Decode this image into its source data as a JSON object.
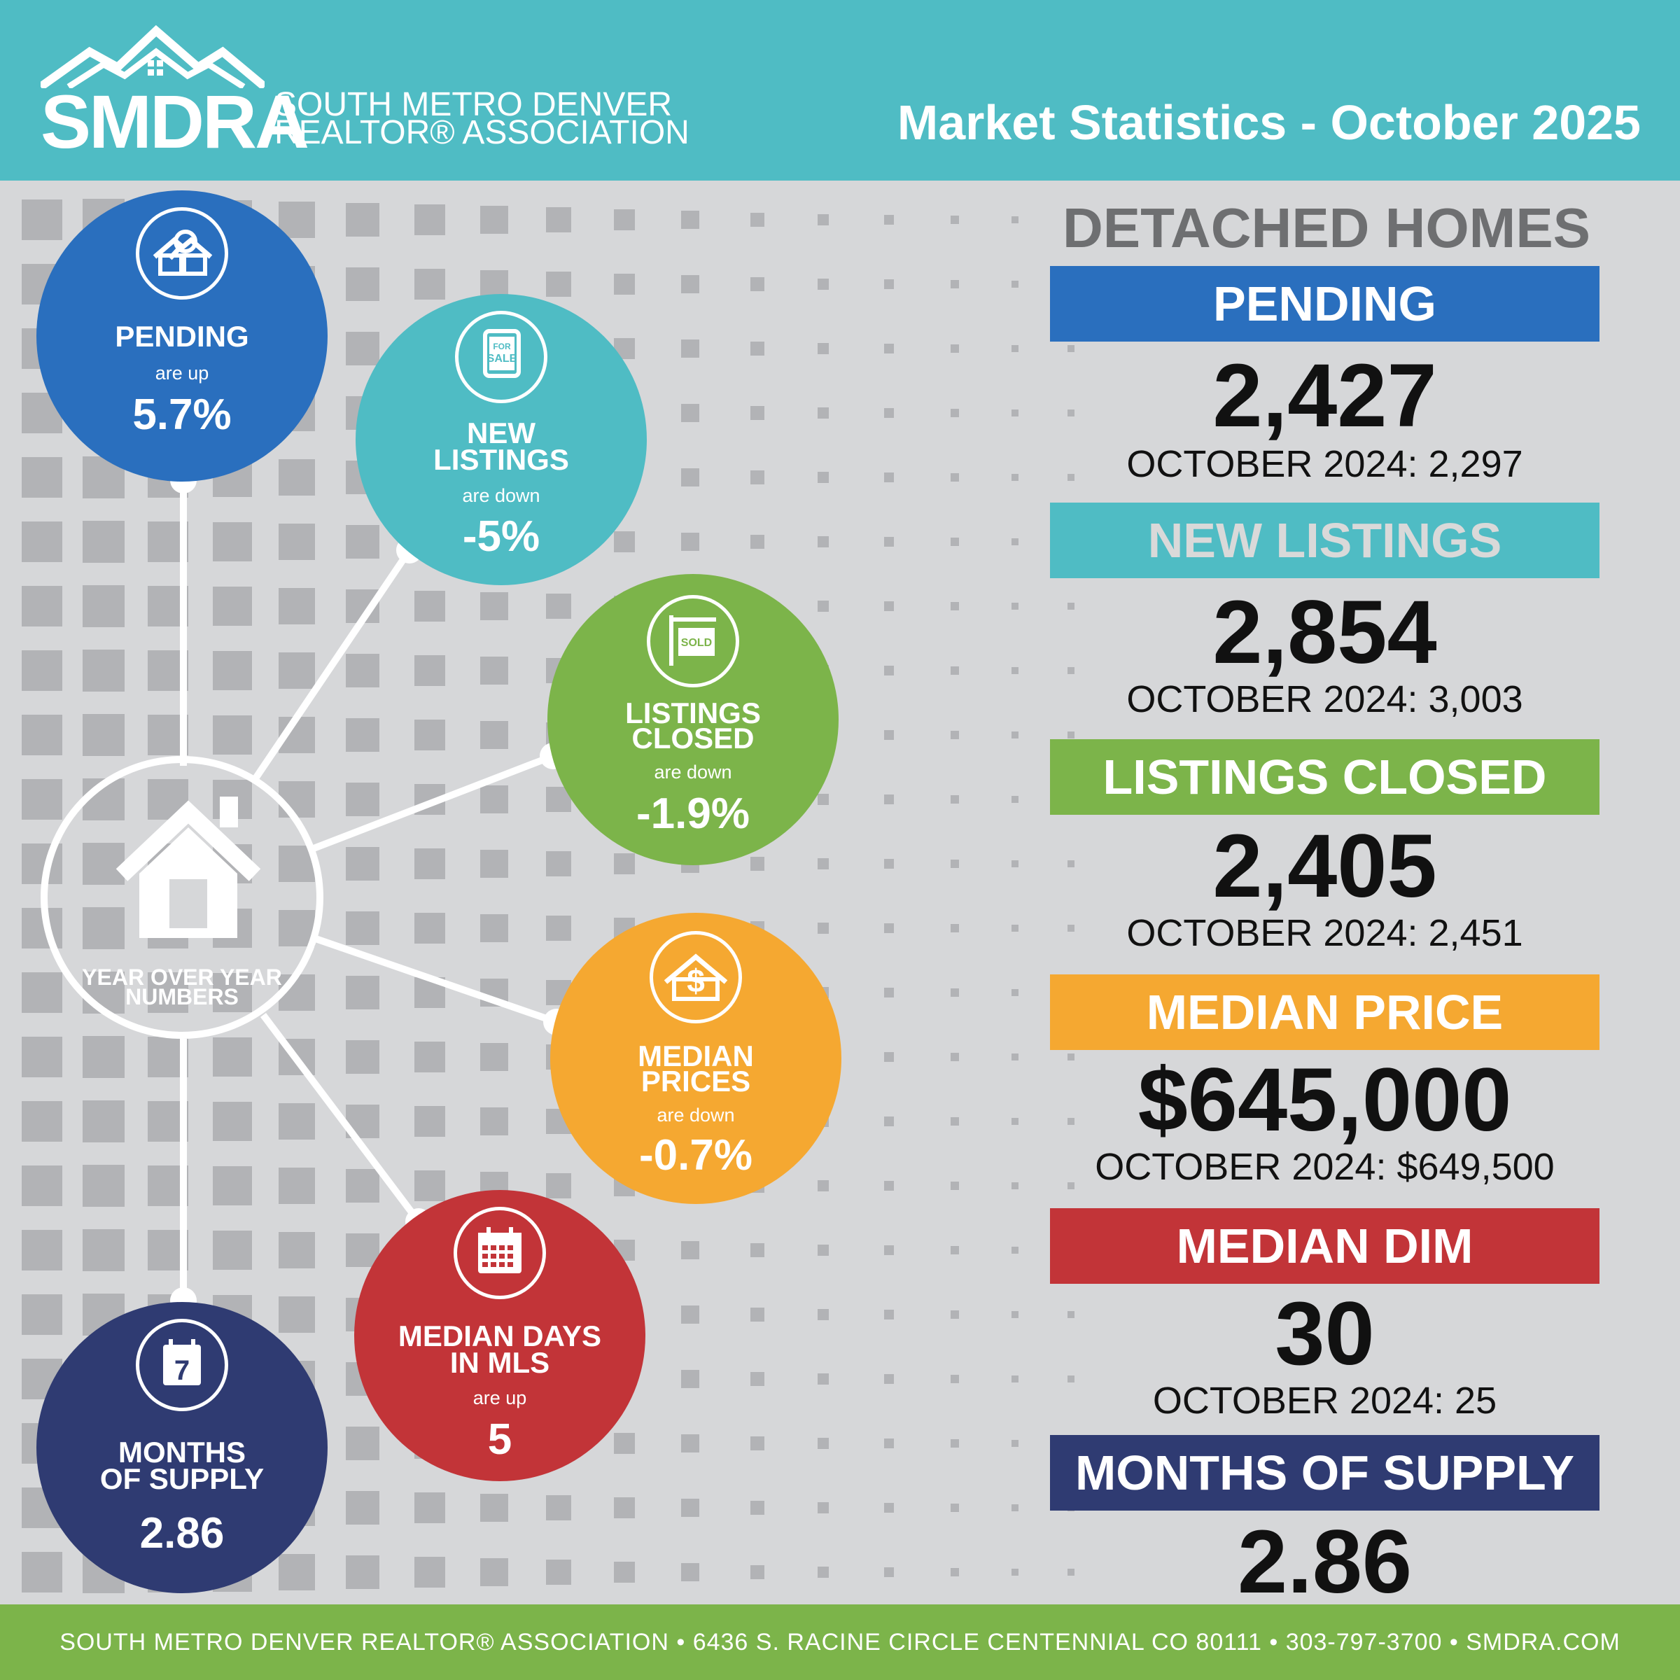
{
  "header": {
    "logo_letters": "SMDRA",
    "logo_line1": "SOUTH METRO DENVER",
    "logo_line2": "REALTOR® ASSOCIATION",
    "title": "Market Statistics - October 2025"
  },
  "hub": {
    "label_line1": "YEAR OVER YEAR",
    "label_line2": "NUMBERS",
    "icon": "house-icon"
  },
  "circles": [
    {
      "id": "pending",
      "line1": "PENDING",
      "line2": "",
      "direction": "are up",
      "value": "5.7%",
      "color": "#2a6fbe",
      "icon": "house-search-icon"
    },
    {
      "id": "new-listings",
      "line1": "NEW",
      "line2": "LISTINGS",
      "direction": "are down",
      "value": "-5%",
      "color": "#4fbcc4",
      "icon": "for-sale-sign-icon",
      "icon_text_1": "FOR",
      "icon_text_2": "SALE"
    },
    {
      "id": "listings-closed",
      "line1": "LISTINGS",
      "line2": "CLOSED",
      "direction": "are down",
      "value": "-1.9%",
      "color": "#7cb44a",
      "icon": "sold-sign-icon",
      "icon_text_1": "SOLD"
    },
    {
      "id": "median-prices",
      "line1": "MEDIAN",
      "line2": "PRICES",
      "direction": "are down",
      "value": "-0.7%",
      "color": "#f5a831",
      "icon": "house-dollar-icon"
    },
    {
      "id": "median-days",
      "line1": "MEDIAN DAYS",
      "line2": "IN MLS",
      "direction": "are up",
      "value": "5",
      "color": "#c23438",
      "icon": "calendar-icon"
    },
    {
      "id": "months-supply",
      "line1": "MONTHS",
      "line2": "OF SUPPLY",
      "direction": "",
      "value": "2.86",
      "color": "#2f3b72",
      "icon": "calendar-7-icon",
      "icon_text_1": "7"
    }
  ],
  "right": {
    "heading": "DETACHED HOMES",
    "stats": [
      {
        "label": "PENDING",
        "value": "2,427",
        "previous": "OCTOBER 2024: 2,297",
        "color": "#2a6fbe",
        "label_color": "#ffffff"
      },
      {
        "label": "NEW LISTINGS",
        "value": "2,854",
        "previous": "OCTOBER 2024: 3,003",
        "color": "#4fbcc4",
        "label_color": "#d9d9d9"
      },
      {
        "label": "LISTINGS CLOSED",
        "value": "2,405",
        "previous": "OCTOBER 2024: 2,451",
        "color": "#7cb44a",
        "label_color": "#ffffff"
      },
      {
        "label": "MEDIAN PRICE",
        "value": "$645,000",
        "previous": "OCTOBER 2024: $649,500",
        "color": "#f5a831",
        "label_color": "#ffffff"
      },
      {
        "label": "MEDIAN DIM",
        "value": "30",
        "previous": "OCTOBER 2024: 25",
        "color": "#c23438",
        "label_color": "#ffffff"
      },
      {
        "label": "MONTHS OF SUPPLY",
        "value": "2.86",
        "previous": "",
        "color": "#2f3b72",
        "label_color": "#ffffff"
      }
    ]
  },
  "footer": {
    "text": "SOUTH METRO DENVER REALTOR® ASSOCIATION • 6436 S. RACINE CIRCLE CENTENNIAL CO 80111 • 303-797-3700 • SMDRA.COM"
  }
}
